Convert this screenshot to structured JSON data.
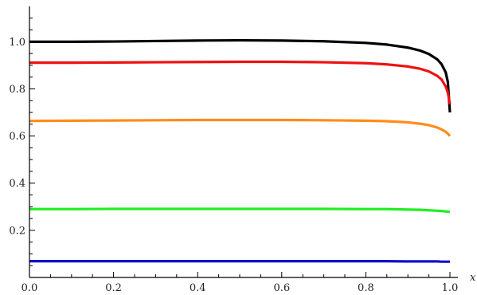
{
  "chart_data": {
    "type": "line",
    "title": "",
    "xlabel": "x",
    "ylabel": "",
    "xlim": [
      0,
      1
    ],
    "ylim": [
      0,
      1.15
    ],
    "x_ticks": [
      {
        "value": 0.0,
        "label": "0.0"
      },
      {
        "value": 0.2,
        "label": "0.2"
      },
      {
        "value": 0.4,
        "label": "0.4"
      },
      {
        "value": 0.6,
        "label": "0.6"
      },
      {
        "value": 0.8,
        "label": "0.8"
      },
      {
        "value": 1.0,
        "label": "1.0"
      }
    ],
    "y_ticks": [
      {
        "value": 0.2,
        "label": "0.2"
      },
      {
        "value": 0.4,
        "label": "0.4"
      },
      {
        "value": 0.6,
        "label": "0.6"
      },
      {
        "value": 0.8,
        "label": "0.8"
      },
      {
        "value": 1.0,
        "label": "1.0"
      }
    ],
    "grid": false,
    "legend": "none",
    "x": [
      0.0,
      0.1,
      0.2,
      0.3,
      0.4,
      0.5,
      0.6,
      0.7,
      0.8,
      0.85,
      0.9,
      0.93,
      0.95,
      0.97,
      0.98,
      0.99,
      0.995,
      1.0
    ],
    "series": [
      {
        "color": "#000000",
        "values": [
          1.0,
          1.0,
          1.001,
          1.003,
          1.005,
          1.006,
          1.005,
          1.002,
          0.995,
          0.988,
          0.975,
          0.962,
          0.948,
          0.925,
          0.905,
          0.87,
          0.83,
          0.7
        ]
      },
      {
        "color": "#ee1111",
        "values": [
          0.911,
          0.911,
          0.912,
          0.913,
          0.914,
          0.915,
          0.915,
          0.913,
          0.909,
          0.904,
          0.895,
          0.885,
          0.874,
          0.855,
          0.84,
          0.81,
          0.785,
          0.735
        ]
      },
      {
        "color": "#ff8c1a",
        "values": [
          0.664,
          0.665,
          0.666,
          0.667,
          0.668,
          0.668,
          0.668,
          0.667,
          0.665,
          0.663,
          0.658,
          0.652,
          0.646,
          0.636,
          0.628,
          0.618,
          0.61,
          0.6
        ]
      },
      {
        "color": "#22ee22",
        "values": [
          0.29,
          0.29,
          0.291,
          0.291,
          0.291,
          0.291,
          0.291,
          0.291,
          0.29,
          0.29,
          0.288,
          0.287,
          0.285,
          0.283,
          0.282,
          0.28,
          0.279,
          0.278
        ]
      },
      {
        "color": "#1111cc",
        "values": [
          0.069,
          0.069,
          0.069,
          0.069,
          0.069,
          0.069,
          0.069,
          0.069,
          0.069,
          0.069,
          0.068,
          0.068,
          0.068,
          0.068,
          0.067,
          0.067,
          0.067,
          0.067
        ]
      }
    ]
  }
}
